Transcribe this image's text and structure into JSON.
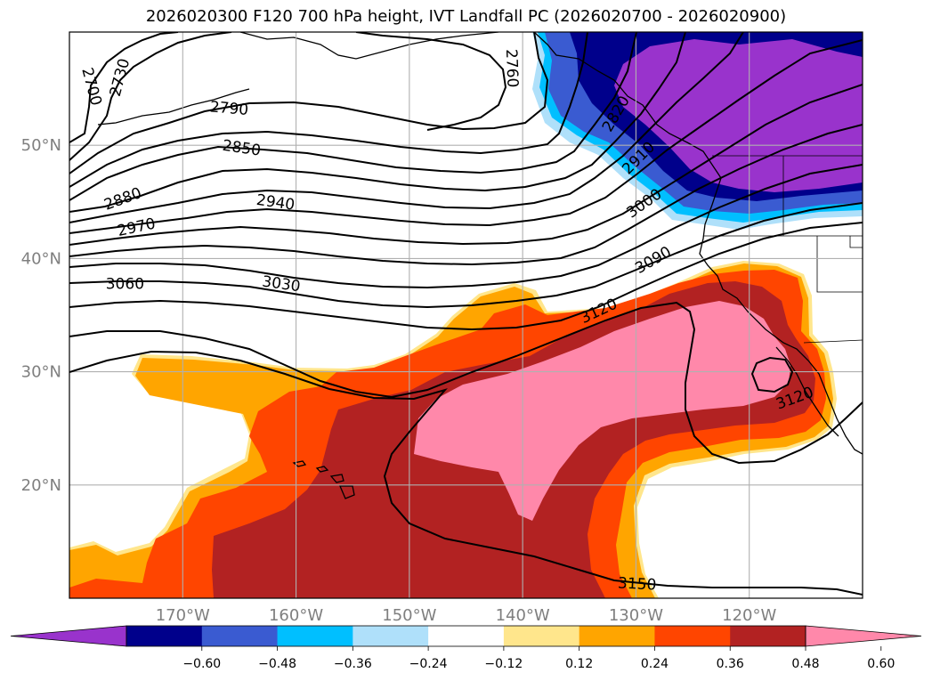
{
  "figure": {
    "title": "2026020300 F120 700 hPa height, IVT Landfall PC (2026020700 - 2026020900)"
  },
  "map": {
    "projection": "PlateCarree",
    "extent": {
      "lon_min": -180,
      "lon_max": -110,
      "lat_min": 10,
      "lat_max": 60
    },
    "gridlines": true,
    "lat_ticks": [
      {
        "value": 20,
        "label": "20°N"
      },
      {
        "value": 30,
        "label": "30°N"
      },
      {
        "value": 40,
        "label": "40°N"
      },
      {
        "value": 50,
        "label": "50°N"
      }
    ],
    "lon_ticks": [
      {
        "value": -170,
        "label": "170°W"
      },
      {
        "value": -160,
        "label": "160°W"
      },
      {
        "value": -150,
        "label": "150°W"
      },
      {
        "value": -140,
        "label": "140°W"
      },
      {
        "value": -130,
        "label": "130°W"
      },
      {
        "value": -120,
        "label": "120°W"
      }
    ],
    "contour_labels": [
      {
        "text": "2700",
        "lon": -178.0,
        "lat": 55.2,
        "rotate": 75
      },
      {
        "text": "2730",
        "lon": -175.6,
        "lat": 56.0,
        "rotate": -75
      },
      {
        "text": "2760",
        "lon": -140.9,
        "lat": 56.8,
        "rotate": 88
      },
      {
        "text": "2790",
        "lon": -165.9,
        "lat": 53.3,
        "rotate": 5
      },
      {
        "text": "2820",
        "lon": -131.8,
        "lat": 52.8,
        "rotate": -60
      },
      {
        "text": "2850",
        "lon": -164.8,
        "lat": 49.8,
        "rotate": 8
      },
      {
        "text": "2880",
        "lon": -175.3,
        "lat": 45.3,
        "rotate": -20
      },
      {
        "text": "2910",
        "lon": -129.8,
        "lat": 48.9,
        "rotate": -45
      },
      {
        "text": "2940",
        "lon": -161.8,
        "lat": 45.0,
        "rotate": 8
      },
      {
        "text": "2970",
        "lon": -174.1,
        "lat": 42.8,
        "rotate": -12
      },
      {
        "text": "3000",
        "lon": -129.3,
        "lat": 44.9,
        "rotate": -35
      },
      {
        "text": "3030",
        "lon": -161.3,
        "lat": 37.8,
        "rotate": 8
      },
      {
        "text": "3060",
        "lon": -175.1,
        "lat": 37.8,
        "rotate": 0
      },
      {
        "text": "3090",
        "lon": -128.5,
        "lat": 39.9,
        "rotate": -30
      },
      {
        "text": "3120",
        "lon": -133.3,
        "lat": 35.4,
        "rotate": -25
      },
      {
        "text": "3120",
        "lon": -116.0,
        "lat": 27.7,
        "rotate": -20
      },
      {
        "text": "3150",
        "lon": -129.9,
        "lat": 11.3,
        "rotate": 3
      }
    ]
  },
  "colorbar": {
    "levels": [
      "-0.60",
      "-0.48",
      "-0.36",
      "-0.24",
      "-0.12",
      "0.12",
      "0.24",
      "0.36",
      "0.48",
      "0.60"
    ],
    "colors": [
      "#9933cc",
      "#00008b",
      "#3a5bd1",
      "#00bfff",
      "#afe0fa",
      "#ffffff",
      "#ffe68c",
      "#ffa500",
      "#ff4500",
      "#b22222",
      "#ff88aa"
    ],
    "extend": "both"
  },
  "colors": {
    "grid": "#b0b0b0",
    "coast": "#000000",
    "contour": "#000000"
  }
}
